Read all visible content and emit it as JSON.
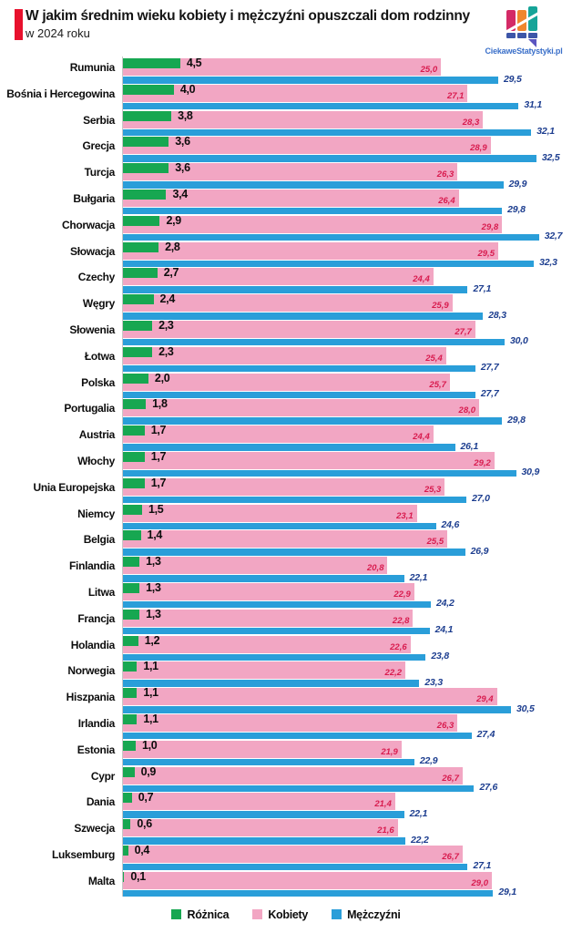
{
  "header": {
    "title": "W jakim średnim wieku kobiety i mężczyźni opuszczali dom rodzinny",
    "subtitle": "w 2024 roku"
  },
  "logo": {
    "text": "CiekaweStatystyki.pl",
    "colors": {
      "bar_magenta": "#d42a66",
      "bar_orange": "#f0862c",
      "bar_teal": "#16a498",
      "base_squares": "#3d56a8",
      "tail": "#5b55c0",
      "text": "#3a6fc9"
    }
  },
  "colors": {
    "difference": "#17a751",
    "women": "#f2a6c3",
    "men": "#2a9ed9",
    "women_value_text": "#d81b4e",
    "men_value_text": "#1c3d8f",
    "difference_value_text": "#0d0d0d",
    "accent_red": "#e8112d",
    "axis_line": "#c8c8c8"
  },
  "legend": {
    "items": [
      {
        "label": "Różnica",
        "color": "#17a751"
      },
      {
        "label": "Kobiety",
        "color": "#f2a6c3"
      },
      {
        "label": "Mężczyźni",
        "color": "#2a9ed9"
      }
    ]
  },
  "chart_data": {
    "type": "bar",
    "orientation": "horizontal",
    "title": "W jakim średnim wieku kobiety i mężczyźni opuszczali dom rodzinny",
    "subtitle": "w 2024 roku",
    "grid": false,
    "legend_position": "bottom",
    "xlim": [
      0,
      35.3
    ],
    "value_label_format": "decimal-comma-1",
    "categories": [
      "Rumunia",
      "Bośnia i Hercegowina",
      "Serbia",
      "Grecja",
      "Turcja",
      "Bułgaria",
      "Chorwacja",
      "Słowacja",
      "Czechy",
      "Węgry",
      "Słowenia",
      "Łotwa",
      "Polska",
      "Portugalia",
      "Austria",
      "Włochy",
      "Unia Europejska",
      "Niemcy",
      "Belgia",
      "Finlandia",
      "Litwa",
      "Francja",
      "Holandia",
      "Norwegia",
      "Hiszpania",
      "Irlandia",
      "Estonia",
      "Cypr",
      "Dania",
      "Szwecja",
      "Luksemburg",
      "Malta"
    ],
    "series": [
      {
        "name": "Różnica",
        "color": "#17a751",
        "values": [
          4.5,
          4.0,
          3.8,
          3.6,
          3.6,
          3.4,
          2.9,
          2.8,
          2.7,
          2.4,
          2.3,
          2.3,
          2.0,
          1.8,
          1.7,
          1.7,
          1.7,
          1.5,
          1.4,
          1.3,
          1.3,
          1.3,
          1.2,
          1.1,
          1.1,
          1.1,
          1.0,
          0.9,
          0.7,
          0.6,
          0.4,
          0.1
        ]
      },
      {
        "name": "Kobiety",
        "color": "#f2a6c3",
        "values": [
          25.0,
          27.1,
          28.3,
          28.9,
          26.3,
          26.4,
          29.8,
          29.5,
          24.4,
          25.9,
          27.7,
          25.4,
          25.7,
          28.0,
          24.4,
          29.2,
          25.3,
          23.1,
          25.5,
          20.8,
          22.9,
          22.8,
          22.6,
          22.2,
          29.4,
          26.3,
          21.9,
          26.7,
          21.4,
          21.6,
          26.7,
          29.0
        ]
      },
      {
        "name": "Mężczyźni",
        "color": "#2a9ed9",
        "values": [
          29.5,
          31.1,
          32.1,
          32.5,
          29.9,
          29.8,
          32.7,
          32.3,
          27.1,
          28.3,
          30.0,
          27.7,
          27.7,
          29.8,
          26.1,
          30.9,
          27.0,
          24.6,
          26.9,
          22.1,
          24.2,
          24.1,
          23.8,
          23.3,
          30.5,
          27.4,
          22.9,
          27.6,
          22.1,
          22.2,
          27.1,
          29.1
        ]
      }
    ]
  }
}
